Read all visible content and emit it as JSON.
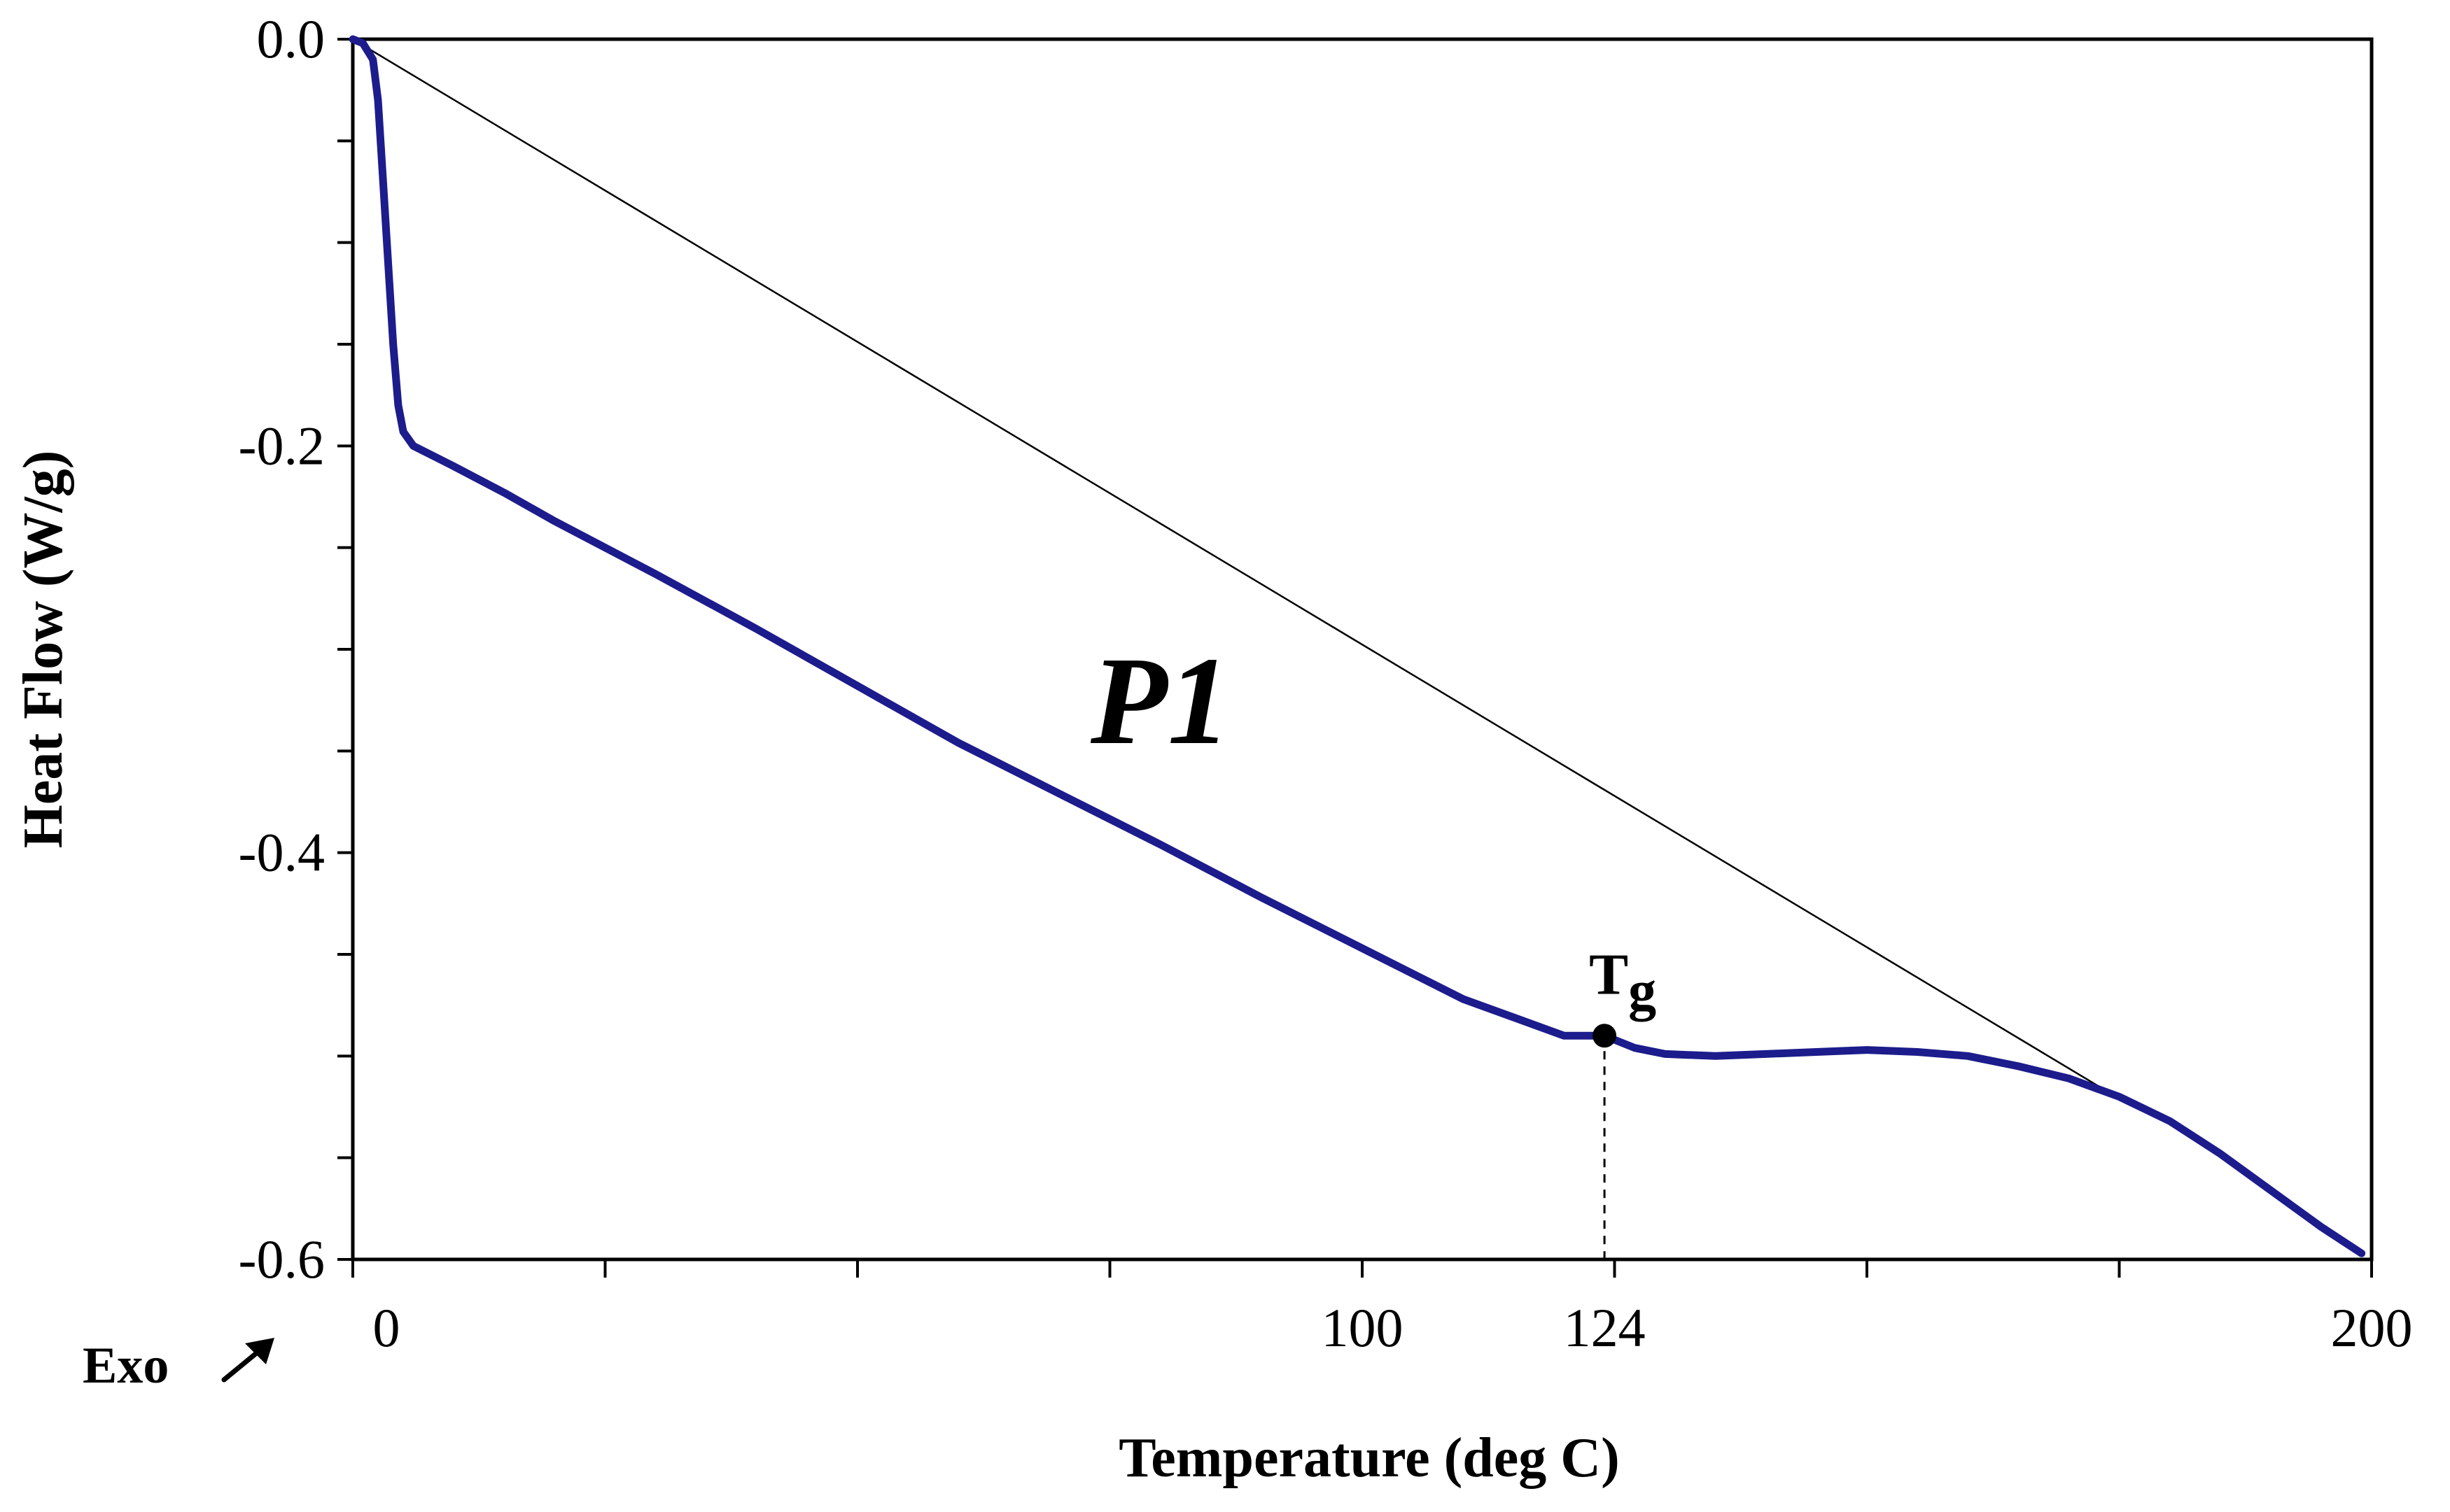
{
  "chart_data": {
    "type": "line",
    "title": "",
    "xlabel": "Temperature (deg C)",
    "ylabel": "Heat Flow (W/g)",
    "xlim": [
      0,
      200
    ],
    "ylim": [
      -0.6,
      0.0
    ],
    "x_ticks": [
      0,
      100,
      124,
      200
    ],
    "x_tick_labels": [
      "0",
      "100",
      "124",
      "200"
    ],
    "x_minor_ticks": [
      0,
      25,
      50,
      75,
      100,
      125,
      150,
      175,
      200
    ],
    "y_ticks": [
      0.0,
      -0.2,
      -0.4,
      -0.6
    ],
    "y_tick_labels": [
      "0.0",
      "-0.2",
      "-0.4",
      "-0.6"
    ],
    "y_minor_ticks": [
      0.0,
      -0.05,
      -0.1,
      -0.15,
      -0.2,
      -0.25,
      -0.3,
      -0.35,
      -0.4,
      -0.45,
      -0.5,
      -0.55,
      -0.6
    ],
    "grid": false,
    "series_label": "P1",
    "exo_label": "Exo",
    "exo_icon": "arrow-up-right-icon",
    "colors": {
      "curve": "#1c1c8c",
      "baseline": "#000000",
      "axis": "#000000"
    },
    "series": [
      {
        "name": "P1",
        "x": [
          0,
          1,
          2,
          2.5,
          3,
          3.5,
          4,
          4.5,
          5,
          6,
          8,
          10,
          15,
          20,
          30,
          40,
          50,
          60,
          70,
          80,
          90,
          100,
          110,
          120,
          124,
          127,
          130,
          135,
          140,
          145,
          150,
          155,
          160,
          165,
          170,
          175,
          180,
          185,
          190,
          195,
          199
        ],
        "y": [
          0.0,
          -0.002,
          -0.01,
          -0.03,
          -0.07,
          -0.11,
          -0.15,
          -0.18,
          -0.193,
          -0.2,
          -0.205,
          -0.21,
          -0.223,
          -0.237,
          -0.263,
          -0.29,
          -0.318,
          -0.346,
          -0.371,
          -0.396,
          -0.422,
          -0.447,
          -0.472,
          -0.49,
          -0.49,
          -0.496,
          -0.499,
          -0.5,
          -0.499,
          -0.498,
          -0.497,
          -0.498,
          -0.5,
          -0.505,
          -0.511,
          -0.52,
          -0.532,
          -0.548,
          -0.566,
          -0.584,
          -0.597
        ]
      },
      {
        "name": "baseline",
        "x": [
          0,
          173
        ],
        "y": [
          0.0,
          -0.515
        ]
      }
    ],
    "annotations": [
      {
        "label": "T",
        "subscript": "g",
        "x": 124,
        "y": -0.49,
        "marker": "dot",
        "dropline_to_x_axis": true
      }
    ]
  }
}
